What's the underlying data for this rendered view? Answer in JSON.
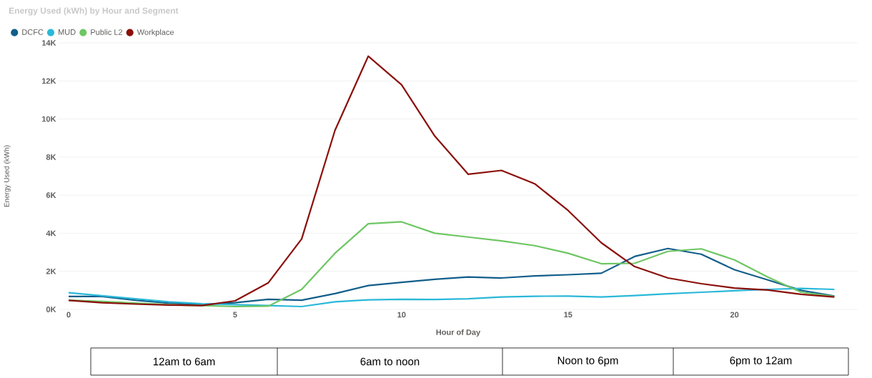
{
  "chart_data": {
    "type": "line",
    "title": "Energy Used (kWh) by Hour and Segment",
    "xlabel": "Hour of Day",
    "ylabel": "Energy Used (kWh)",
    "x": [
      0,
      1,
      2,
      3,
      4,
      5,
      6,
      7,
      8,
      9,
      10,
      11,
      12,
      13,
      14,
      15,
      16,
      17,
      18,
      19,
      20,
      21,
      22,
      23
    ],
    "series": [
      {
        "name": "DCFC",
        "color": "#125e8a",
        "values": [
          680,
          680,
          480,
          330,
          250,
          350,
          530,
          480,
          830,
          1250,
          1420,
          1580,
          1700,
          1650,
          1760,
          1820,
          1900,
          2780,
          3200,
          2900,
          2080,
          1550,
          1000,
          700
        ]
      },
      {
        "name": "MUD",
        "color": "#2ab8d8",
        "values": [
          880,
          720,
          560,
          400,
          300,
          250,
          200,
          150,
          400,
          500,
          530,
          520,
          560,
          650,
          690,
          700,
          650,
          730,
          820,
          900,
          980,
          1050,
          1100,
          1050
        ]
      },
      {
        "name": "Public L2",
        "color": "#6ec664",
        "values": [
          480,
          420,
          330,
          250,
          200,
          150,
          170,
          1050,
          2950,
          4500,
          4600,
          4000,
          3800,
          3600,
          3350,
          2950,
          2400,
          2420,
          3050,
          3180,
          2600,
          1700,
          900,
          680
        ]
      },
      {
        "name": "Workplace",
        "color": "#8b0f0a",
        "values": [
          470,
          350,
          280,
          230,
          200,
          450,
          1400,
          3700,
          9400,
          13300,
          11800,
          9100,
          7100,
          7300,
          6600,
          5200,
          3500,
          2250,
          1650,
          1350,
          1120,
          1020,
          790,
          650
        ]
      }
    ],
    "xlim": [
      -0.3,
      23.7
    ],
    "ylim": [
      0,
      14000
    ],
    "xticks": [
      0,
      5,
      10,
      15,
      20
    ],
    "yticks": [
      {
        "value": 0,
        "label": "0K"
      },
      {
        "value": 2000,
        "label": "2K"
      },
      {
        "value": 4000,
        "label": "4K"
      },
      {
        "value": 6000,
        "label": "6K"
      },
      {
        "value": 8000,
        "label": "8K"
      },
      {
        "value": 10000,
        "label": "10K"
      },
      {
        "value": 12000,
        "label": "12K"
      },
      {
        "value": 14000,
        "label": "14K"
      }
    ],
    "grid": "y",
    "legend": "top left",
    "annotations": [
      "12am to 6am",
      "6am to noon",
      "Noon to 6pm",
      "6pm to 12am"
    ]
  }
}
